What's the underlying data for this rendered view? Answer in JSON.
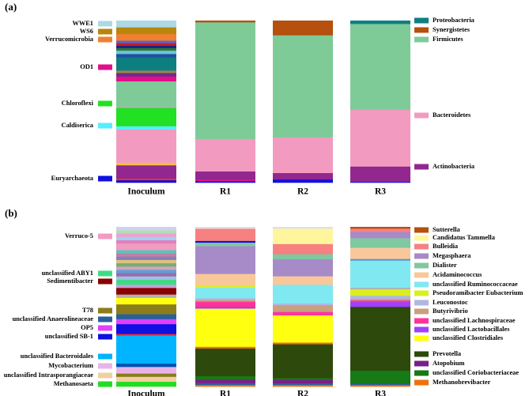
{
  "chart_data": [
    {
      "type": "bar",
      "stacked": true,
      "panel_label": "(a)",
      "ylabel": "",
      "ylim": [
        0,
        100
      ],
      "unit": "relative abundance (%), estimated",
      "categories": [
        "Inoculum",
        "R1",
        "R2",
        "R3"
      ],
      "left_legend": [
        {
          "name": "WWE1",
          "color": "#add8e6"
        },
        {
          "name": "WS6",
          "color": "#b8860b"
        },
        {
          "name": "Verrucomicrobia",
          "color": "#f08030"
        },
        {
          "name": "OD1",
          "color": "#e0108a"
        },
        {
          "name": "Chloroflexi",
          "color": "#22e022"
        },
        {
          "name": "Caldiserica",
          "color": "#55eeff"
        },
        {
          "name": "Euryarchaeota",
          "color": "#1010e0"
        }
      ],
      "right_legend": [
        {
          "name": "Proteobacteria",
          "color": "#0d7f80"
        },
        {
          "name": "Synergistetes",
          "color": "#b5500e"
        },
        {
          "name": "Firmicutes",
          "color": "#7ecb98"
        },
        {
          "name": "Bacteroidetes",
          "color": "#f39ac1"
        },
        {
          "name": "Actinobacteria",
          "color": "#92278f"
        }
      ],
      "stacks": [
        [
          {
            "name": "Euryarchaeota",
            "color": "#1010e0",
            "value": 1.5
          },
          {
            "name": "Other",
            "color": "#e83030",
            "value": 1.0
          },
          {
            "name": "Actinobacteria",
            "color": "#92278f",
            "value": 8.0
          },
          {
            "name": "Other",
            "color": "#f3c040",
            "value": 1.5
          },
          {
            "name": "Bacteroidetes",
            "color": "#f39ac1",
            "value": 20.0
          },
          {
            "name": "Caldiserica",
            "color": "#55eeff",
            "value": 2.0
          },
          {
            "name": "Chloroflexi",
            "color": "#22e022",
            "value": 11.0
          },
          {
            "name": "Other",
            "color": "#b0b0b0",
            "value": 1.0
          },
          {
            "name": "Firmicutes",
            "color": "#7ecb98",
            "value": 15.0
          },
          {
            "name": "OD1",
            "color": "#e0108a",
            "value": 3.0
          },
          {
            "name": "Other",
            "color": "#6a2c8c",
            "value": 2.0
          },
          {
            "name": "Other",
            "color": "#a08050",
            "value": 1.5
          },
          {
            "name": "Proteobacteria",
            "color": "#0d7f80",
            "value": 8.0
          },
          {
            "name": "Other",
            "color": "#2050a0",
            "value": 2.0
          },
          {
            "name": "Other",
            "color": "#6cc4e0",
            "value": 2.0
          },
          {
            "name": "Other",
            "color": "#2d7a2d",
            "value": 1.5
          },
          {
            "name": "Other",
            "color": "#20208a",
            "value": 1.5
          },
          {
            "name": "Other",
            "color": "#c02020",
            "value": 1.5
          },
          {
            "name": "Other",
            "color": "#6060d0",
            "value": 1.5
          },
          {
            "name": "Verrucomicrobia",
            "color": "#f08030",
            "value": 4.0
          },
          {
            "name": "WS6",
            "color": "#b8860b",
            "value": 4.0
          },
          {
            "name": "WWE1",
            "color": "#add8e6",
            "value": 4.0
          }
        ],
        [
          {
            "name": "Other",
            "color": "#1010e0",
            "value": 1.0
          },
          {
            "name": "Other",
            "color": "#e0108a",
            "value": 1.0
          },
          {
            "name": "Actinobacteria",
            "color": "#92278f",
            "value": 5.0
          },
          {
            "name": "Bacteroidetes",
            "color": "#f39ac1",
            "value": 20.0
          },
          {
            "name": "Firmicutes",
            "color": "#7ecb98",
            "value": 72.0
          },
          {
            "name": "Synergistetes",
            "color": "#b5500e",
            "value": 1.0
          }
        ],
        [
          {
            "name": "Other",
            "color": "#1010e0",
            "value": 2.0
          },
          {
            "name": "Actinobacteria",
            "color": "#92278f",
            "value": 4.0
          },
          {
            "name": "Bacteroidetes",
            "color": "#f39ac1",
            "value": 22.0
          },
          {
            "name": "Firmicutes",
            "color": "#7ecb98",
            "value": 63.0
          },
          {
            "name": "Synergistetes",
            "color": "#b5500e",
            "value": 9.0
          }
        ],
        [
          {
            "name": "Other",
            "color": "#1010e0",
            "value": 0.5
          },
          {
            "name": "Actinobacteria",
            "color": "#92278f",
            "value": 9.5
          },
          {
            "name": "Bacteroidetes",
            "color": "#f39ac1",
            "value": 35.0
          },
          {
            "name": "Firmicutes",
            "color": "#7ecb98",
            "value": 53.0
          },
          {
            "name": "Proteobacteria",
            "color": "#0d7f80",
            "value": 2.0
          }
        ]
      ]
    },
    {
      "type": "bar",
      "stacked": true,
      "panel_label": "(b)",
      "ylabel": "",
      "ylim": [
        0,
        100
      ],
      "unit": "relative abundance (%), estimated",
      "categories": [
        "Inoculum",
        "R1",
        "R2",
        "R3"
      ],
      "left_legend": [
        {
          "name": "Verruco-5",
          "color": "#f39ac1"
        },
        {
          "name": "unclassified ABY1",
          "color": "#3ddc84"
        },
        {
          "name": "Sedimentibacter",
          "color": "#8b0000"
        },
        {
          "name": "T78",
          "color": "#8b7d1a"
        },
        {
          "name": "unclassified Anaerolineaceae",
          "color": "#2a5f9e"
        },
        {
          "name": "OP5",
          "color": "#e040fb"
        },
        {
          "name": "unclassified SB-1",
          "color": "#1010e0"
        },
        {
          "name": "unclassified Bacteroidales",
          "color": "#00b4ff"
        },
        {
          "name": "Mycobacterium",
          "color": "#e8b4e8"
        },
        {
          "name": "unclassified Intrasporangiaceae",
          "color": "#f0d0a0"
        },
        {
          "name": "Methanosaeta",
          "color": "#22dd22"
        }
      ],
      "right_legend": [
        {
          "name": "Sutterella",
          "color": "#b5500e"
        },
        {
          "name": "Candidatus Tammella",
          "color": "#fff59d"
        },
        {
          "name": "Bulleidia",
          "color": "#f78080"
        },
        {
          "name": "Megasphaera",
          "color": "#a78ac8"
        },
        {
          "name": "Dialister",
          "color": "#80c8a0"
        },
        {
          "name": "Acidaminococcus",
          "color": "#f8c89a"
        },
        {
          "name": "unclassified Ruminococcaceae",
          "color": "#80e8f0"
        },
        {
          "name": "Pseudoramibacter Eubacterium",
          "color": "#d8f020"
        },
        {
          "name": "Leuconostoc",
          "color": "#b0b8e0"
        },
        {
          "name": "Butyrivibrio",
          "color": "#c8a080"
        },
        {
          "name": "unclassified Lachnospiraceae",
          "color": "#ff3399"
        },
        {
          "name": "unclassified Lactobacillales",
          "color": "#a040ff"
        },
        {
          "name": "unclassified Clostridiales",
          "color": "#ffff10"
        },
        {
          "name": "Prevotella",
          "color": "#2d4a0c"
        },
        {
          "name": "Atopobium",
          "color": "#7a1f8a"
        },
        {
          "name": "unclassified Coriobacteriaceae",
          "color": "#167a16"
        },
        {
          "name": "Methanobrevibacter",
          "color": "#f07010"
        }
      ],
      "stacks": [
        [
          {
            "name": "Methanosaeta",
            "color": "#22dd22",
            "value": 3.0
          },
          {
            "name": "unclassified Intrasporangiaceae",
            "color": "#f0d0a0",
            "value": 3.0
          },
          {
            "name": "Other",
            "color": "#8b7d1a",
            "value": 2.0
          },
          {
            "name": "Mycobacterium",
            "color": "#e8b4e8",
            "value": 4.0
          },
          {
            "name": "Other",
            "color": "#0050b0",
            "value": 2.0
          },
          {
            "name": "unclassified Bacteroidales",
            "color": "#00b4ff",
            "value": 17.0
          },
          {
            "name": "Other",
            "color": "#e83030",
            "value": 1.0
          },
          {
            "name": "unclassified SB-1",
            "color": "#1010e0",
            "value": 6.0
          },
          {
            "name": "OP5",
            "color": "#e040fb",
            "value": 3.0
          },
          {
            "name": "unclassified Anaerolineaceae",
            "color": "#2a5f9e",
            "value": 3.0
          },
          {
            "name": "T78",
            "color": "#8b7d1a",
            "value": 6.0
          },
          {
            "name": "Other",
            "color": "#ffff10",
            "value": 4.0
          },
          {
            "name": "Other",
            "color": "#b0b0b0",
            "value": 2.0
          },
          {
            "name": "Sedimentibacter",
            "color": "#8b0000",
            "value": 4.0
          },
          {
            "name": "Other",
            "color": "#c8a0d8",
            "value": 2.0
          },
          {
            "name": "unclassified ABY1",
            "color": "#3ddc84",
            "value": 3.0
          },
          {
            "name": "Other",
            "color": "#a0c0e0",
            "value": 2.0
          },
          {
            "name": "Other",
            "color": "#9a6ab0",
            "value": 2.0
          },
          {
            "name": "Other",
            "color": "#60a0d0",
            "value": 2.0
          },
          {
            "name": "Other",
            "color": "#d8a0c0",
            "value": 2.0
          },
          {
            "name": "Other",
            "color": "#70b070",
            "value": 2.0
          },
          {
            "name": "Other",
            "color": "#e0c080",
            "value": 2.0
          },
          {
            "name": "Other",
            "color": "#8080c0",
            "value": 2.0
          },
          {
            "name": "Other",
            "color": "#c080a0",
            "value": 2.0
          },
          {
            "name": "Other",
            "color": "#60c0c0",
            "value": 2.0
          },
          {
            "name": "Verruco-5",
            "color": "#f39ac1",
            "value": 4.0
          },
          {
            "name": "Other",
            "color": "#e080c0",
            "value": 2.0
          },
          {
            "name": "Other",
            "color": "#a0d0f0",
            "value": 2.0
          },
          {
            "name": "Other",
            "color": "#f0a0d0",
            "value": 2.0
          },
          {
            "name": "Other",
            "color": "#b0e0b0",
            "value": 2.0
          },
          {
            "name": "Other",
            "color": "#d0d0f0",
            "value": 2.0
          }
        ],
        [
          {
            "name": "Methanobrevibacter",
            "color": "#f07010",
            "value": 1.0
          },
          {
            "name": "Other",
            "color": "#2a5f9e",
            "value": 1.0
          },
          {
            "name": "Atopobium",
            "color": "#7a1f8a",
            "value": 2.0
          },
          {
            "name": "unclassified Coriobacteriaceae",
            "color": "#167a16",
            "value": 2.0
          },
          {
            "name": "Prevotella",
            "color": "#2d4a0c",
            "value": 16.0
          },
          {
            "name": "Other",
            "color": "#f07010",
            "value": 1.0
          },
          {
            "name": "unclassified Clostridiales",
            "color": "#ffff10",
            "value": 22.0
          },
          {
            "name": "unclassified Lactobacillales",
            "color": "#a040ff",
            "value": 1.0
          },
          {
            "name": "unclassified Lachnospiraceae",
            "color": "#ff3399",
            "value": 3.0
          },
          {
            "name": "Butyrivibrio",
            "color": "#c8a080",
            "value": 1.0
          },
          {
            "name": "Leuconostoc",
            "color": "#b0b8e0",
            "value": 1.0
          },
          {
            "name": "unclassified Ruminococcaceae",
            "color": "#80e8f0",
            "value": 6.0
          },
          {
            "name": "Other",
            "color": "#d8f020",
            "value": 1.0
          },
          {
            "name": "Acidaminococcus",
            "color": "#f8c89a",
            "value": 7.0
          },
          {
            "name": "Megasphaera",
            "color": "#a78ac8",
            "value": 16.0
          },
          {
            "name": "Dialister",
            "color": "#80c8a0",
            "value": 2.0
          },
          {
            "name": "Other",
            "color": "#1010e0",
            "value": 1.0
          },
          {
            "name": "Bulleidia",
            "color": "#f78080",
            "value": 7.0
          },
          {
            "name": "Other",
            "color": "#e0e0e0",
            "value": 1.0
          }
        ],
        [
          {
            "name": "Methanobrevibacter",
            "color": "#f07010",
            "value": 1.0
          },
          {
            "name": "Other",
            "color": "#2a5f9e",
            "value": 1.0
          },
          {
            "name": "Atopobium",
            "color": "#7a1f8a",
            "value": 2.0
          },
          {
            "name": "unclassified Coriobacteriaceae",
            "color": "#167a16",
            "value": 1.0
          },
          {
            "name": "Prevotella",
            "color": "#2d4a0c",
            "value": 20.0
          },
          {
            "name": "Other",
            "color": "#f07010",
            "value": 1.0
          },
          {
            "name": "unclassified Clostridiales",
            "color": "#ffff10",
            "value": 16.0
          },
          {
            "name": "unclassified Lachnospiraceae",
            "color": "#ff3399",
            "value": 2.0
          },
          {
            "name": "Butyrivibrio",
            "color": "#c8a080",
            "value": 4.0
          },
          {
            "name": "Leuconostoc",
            "color": "#b0b8e0",
            "value": 1.0
          },
          {
            "name": "unclassified Ruminococcaceae",
            "color": "#80e8f0",
            "value": 11.0
          },
          {
            "name": "Acidaminococcus",
            "color": "#f8c89a",
            "value": 5.0
          },
          {
            "name": "Megasphaera",
            "color": "#a78ac8",
            "value": 10.0
          },
          {
            "name": "Dialister",
            "color": "#80c8a0",
            "value": 3.0
          },
          {
            "name": "Bulleidia",
            "color": "#f78080",
            "value": 6.0
          },
          {
            "name": "Candidatus Tammella",
            "color": "#fff59d",
            "value": 9.0
          },
          {
            "name": "Other",
            "color": "#e0e0e0",
            "value": 1.0
          }
        ],
        [
          {
            "name": "Methanobrevibacter",
            "color": "#f07010",
            "value": 1.0
          },
          {
            "name": "Other",
            "color": "#2a5f9e",
            "value": 1.0
          },
          {
            "name": "unclassified Coriobacteriaceae",
            "color": "#167a16",
            "value": 8.0
          },
          {
            "name": "Prevotella",
            "color": "#2d4a0c",
            "value": 40.0
          },
          {
            "name": "unclassified Lactobacillales",
            "color": "#a040ff",
            "value": 3.0
          },
          {
            "name": "unclassified Lachnospiraceae",
            "color": "#ff3399",
            "value": 1.0
          },
          {
            "name": "Butyrivibrio",
            "color": "#c8a080",
            "value": 1.0
          },
          {
            "name": "Leuconostoc",
            "color": "#b0b8e0",
            "value": 2.0
          },
          {
            "name": "Pseudoramibacter Eubacterium",
            "color": "#d8f020",
            "value": 4.0
          },
          {
            "name": "Other",
            "color": "#b0b0b0",
            "value": 1.0
          },
          {
            "name": "unclassified Ruminococcaceae",
            "color": "#80e8f0",
            "value": 17.0
          },
          {
            "name": "Other",
            "color": "#6090d0",
            "value": 1.0
          },
          {
            "name": "Acidaminococcus",
            "color": "#f8c89a",
            "value": 7.0
          },
          {
            "name": "Dialister",
            "color": "#80c8a0",
            "value": 6.0
          },
          {
            "name": "Megasphaera",
            "color": "#a78ac8",
            "value": 4.0
          },
          {
            "name": "Bulleidia",
            "color": "#f78080",
            "value": 2.0
          },
          {
            "name": "Sutterella",
            "color": "#b5500e",
            "value": 1.0
          }
        ]
      ]
    }
  ]
}
